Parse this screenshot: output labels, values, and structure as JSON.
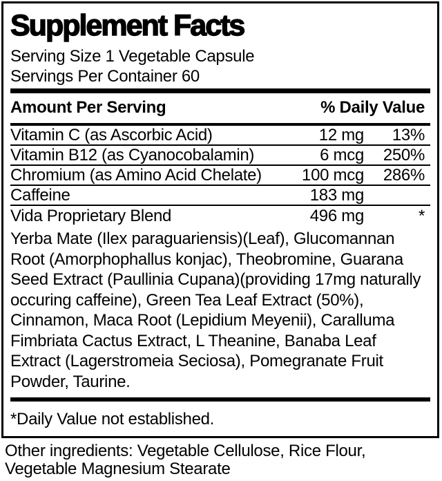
{
  "label": {
    "title": "Supplement Facts",
    "serving_size": "Serving Size 1 Vegetable Capsule",
    "servings_per_container": "Servings Per Container 60",
    "header": {
      "amount_per_serving": "Amount Per Serving",
      "daily_value": "% Daily Value"
    },
    "rows": [
      {
        "name": "Vitamin C (as Ascorbic Acid)",
        "amount": "12 mg",
        "dv": "13%"
      },
      {
        "name": "Vitamin B12 (as Cyanocobalamin)",
        "amount": "6 mcg",
        "dv": "250%"
      },
      {
        "name": "Chromium (as Amino Acid Chelate)",
        "amount": "100 mcg",
        "dv": "286%"
      },
      {
        "name": "Caffeine",
        "amount": "183 mg",
        "dv": ""
      },
      {
        "name": "Vida Proprietary Blend",
        "amount": "496 mg",
        "dv": "*"
      }
    ],
    "blend_description": "Yerba Mate (Ilex paraguariensis)(Leaf), Glucomannan Root (Amorphophallus konjac), Theobromine, Guarana Seed Extract (Paullinia Cupana)(providing 17mg naturally occuring caffeine), Green Tea Leaf Extract (50%), Cinnamon, Maca Root (Lepidium Meyenii), Caralluma Fimbriata Cactus Extract, L Theanine, Banaba Leaf Extract (Lagerstromeia Seciosa), Pomegranate Fruit Powder, Taurine.",
    "footnote": "*Daily Value not established.",
    "other_ingredients": "Other ingredients: Vegetable Cellulose, Rice Flour, Vegetable Magnesium Stearate"
  },
  "colors": {
    "text": "#000000",
    "background": "#ffffff",
    "rule": "#000000"
  }
}
